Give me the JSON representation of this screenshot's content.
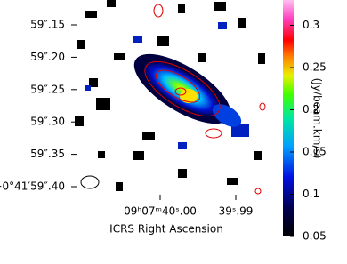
{
  "chart_data": {
    "type": "image",
    "x_label": "ICRS Right Ascension",
    "x_tick_labels": [
      "09ʰ07ᵐ40ˢ.00",
      "39ˢ.99"
    ],
    "y_tick_labels": [
      "59″.15",
      "59″.20",
      "59″.25",
      "59″.30",
      "59″.35",
      "−0°41′59″.40"
    ],
    "colorbar_label": "(Jy/beam.km/s)",
    "clim": [
      0.05,
      0.33
    ],
    "cticks": [
      0.05,
      0.1,
      0.15,
      0.2,
      0.25,
      0.3
    ]
  }
}
